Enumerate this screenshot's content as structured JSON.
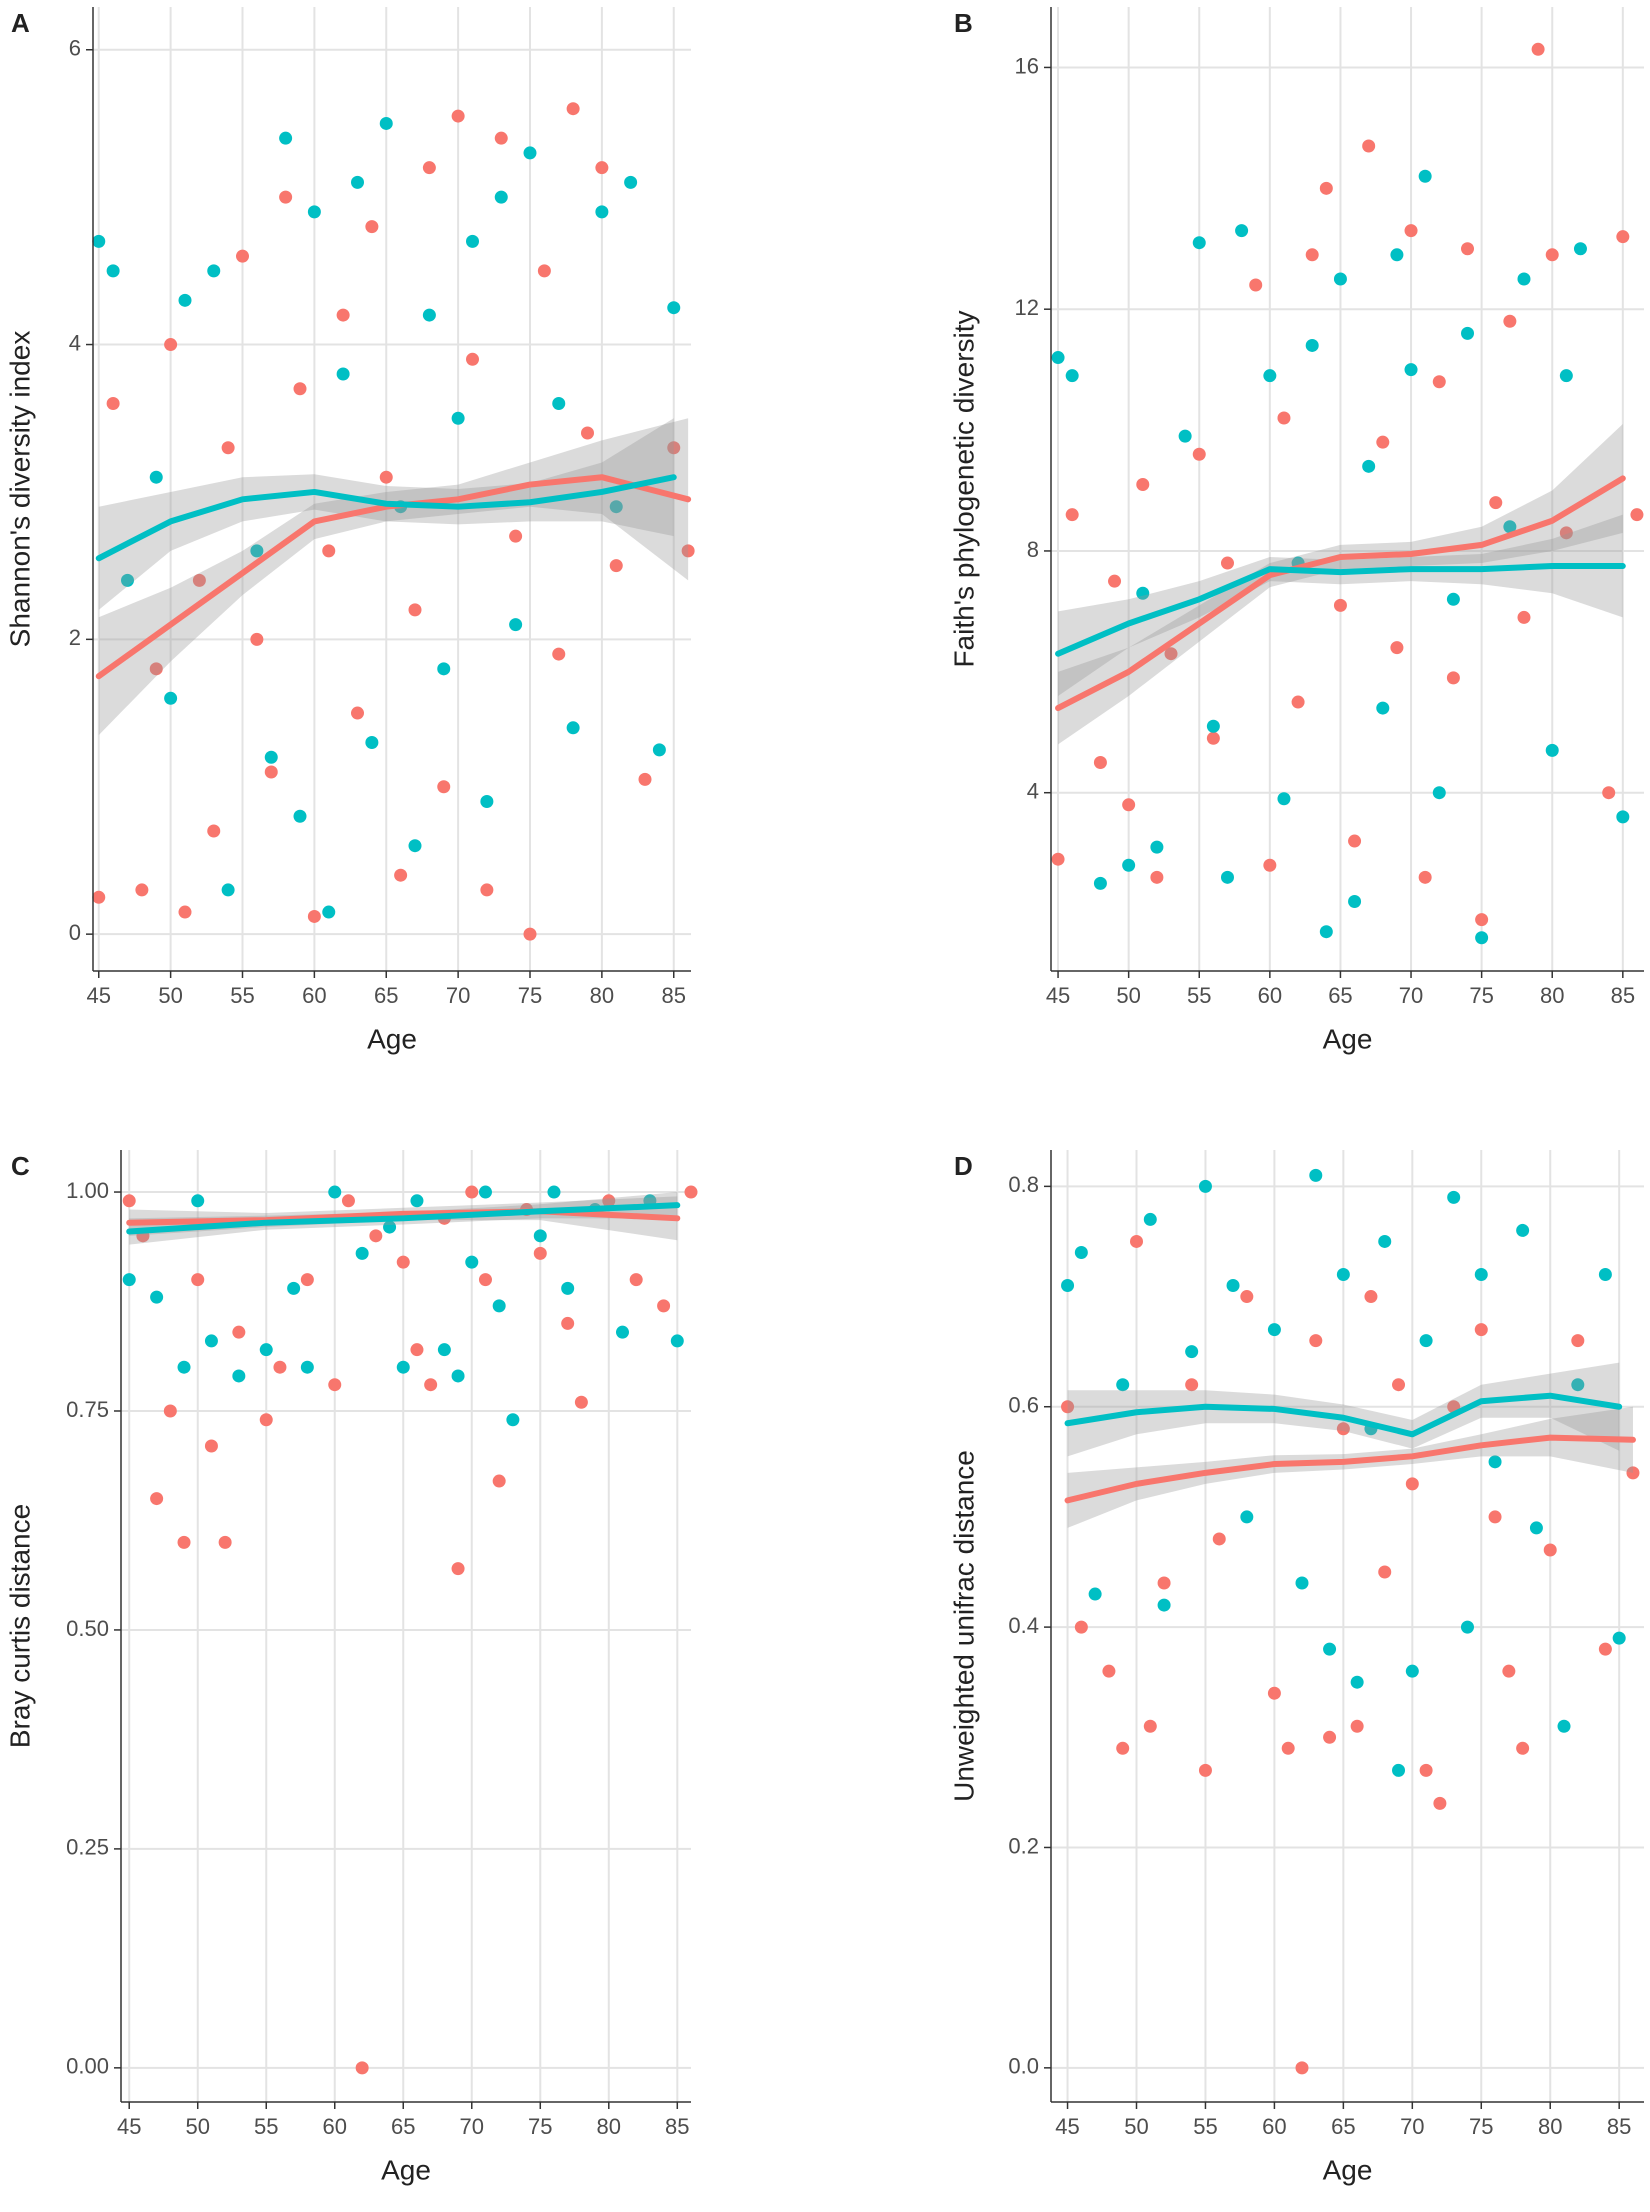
{
  "chart_data": [
    {
      "type": "scatter",
      "label": "A",
      "xlabel": "Age",
      "ylabel": "Shannon's diversity index",
      "xlim": [
        44.6,
        86.2
      ],
      "ylim": [
        -0.25,
        6.29
      ],
      "xticks": [
        45,
        50,
        55,
        60,
        65,
        70,
        75,
        80,
        85
      ],
      "yticks": [
        0,
        2,
        4,
        6
      ],
      "grid": true,
      "band_color": "#999999",
      "series": [
        {
          "color": "#F8766D",
          "x": [
            45,
            46,
            48,
            49,
            50,
            51,
            52,
            53,
            54,
            55,
            56,
            57,
            58,
            59,
            60,
            61,
            62,
            63,
            64,
            65,
            66,
            67,
            68,
            69,
            70,
            71,
            72,
            73,
            74,
            75,
            76,
            77,
            78,
            79,
            80,
            81,
            83,
            85,
            86
          ],
          "y": [
            0.25,
            3.6,
            0.3,
            1.8,
            4.0,
            0.15,
            2.4,
            0.7,
            3.3,
            4.6,
            2.0,
            1.1,
            5.0,
            3.7,
            0.12,
            2.6,
            4.2,
            1.5,
            4.8,
            3.1,
            0.4,
            2.2,
            5.2,
            1.0,
            5.55,
            3.9,
            0.3,
            5.4,
            2.7,
            0.0,
            4.5,
            1.9,
            5.6,
            3.4,
            5.2,
            2.5,
            1.05,
            3.3,
            2.6
          ]
        },
        {
          "color": "#00BFC4",
          "x": [
            45,
            46,
            47,
            49,
            50,
            51,
            53,
            54,
            56,
            57,
            58,
            59,
            60,
            61,
            62,
            63,
            64,
            65,
            66,
            67,
            68,
            69,
            70,
            71,
            72,
            73,
            74,
            75,
            77,
            78,
            80,
            81,
            82,
            84,
            85
          ],
          "y": [
            4.7,
            4.5,
            2.4,
            3.1,
            1.6,
            4.3,
            4.5,
            0.3,
            2.6,
            1.2,
            5.4,
            0.8,
            4.9,
            0.15,
            3.8,
            5.1,
            1.3,
            5.5,
            2.9,
            0.6,
            4.2,
            1.8,
            3.5,
            4.7,
            0.9,
            5.0,
            2.1,
            5.3,
            3.6,
            1.4,
            4.9,
            2.9,
            5.1,
            1.25,
            4.25
          ]
        }
      ],
      "smooth": [
        {
          "color": "#F8766D",
          "x": [
            45,
            50,
            55,
            60,
            65,
            70,
            75,
            80,
            86
          ],
          "y": [
            1.75,
            2.1,
            2.45,
            2.8,
            2.9,
            2.95,
            3.05,
            3.1,
            2.95
          ],
          "lower": [
            1.35,
            1.85,
            2.3,
            2.68,
            2.8,
            2.85,
            2.9,
            2.85,
            2.4
          ],
          "upper": [
            2.15,
            2.35,
            2.6,
            2.92,
            3.0,
            3.05,
            3.2,
            3.35,
            3.5
          ]
        },
        {
          "color": "#00BFC4",
          "x": [
            45,
            50,
            55,
            60,
            65,
            70,
            75,
            80,
            85
          ],
          "y": [
            2.55,
            2.8,
            2.95,
            3.0,
            2.92,
            2.9,
            2.93,
            3.0,
            3.1
          ],
          "lower": [
            2.2,
            2.6,
            2.8,
            2.88,
            2.8,
            2.78,
            2.8,
            2.8,
            2.7
          ],
          "upper": [
            2.9,
            3.0,
            3.1,
            3.12,
            3.04,
            3.02,
            3.06,
            3.2,
            3.5
          ]
        }
      ]
    },
    {
      "type": "scatter",
      "label": "B",
      "xlabel": "Age",
      "ylabel": "Faith's phylogenetic diversity",
      "xlim": [
        44.5,
        86.5
      ],
      "ylim": [
        1.05,
        17
      ],
      "xticks": [
        45,
        50,
        55,
        60,
        65,
        70,
        75,
        80,
        85
      ],
      "yticks": [
        4,
        8,
        12,
        16
      ],
      "grid": true,
      "band_color": "#999999",
      "series": [
        {
          "color": "#F8766D",
          "x": [
            45,
            46,
            48,
            49,
            50,
            51,
            52,
            53,
            55,
            56,
            57,
            59,
            60,
            61,
            62,
            63,
            64,
            65,
            66,
            67,
            68,
            69,
            70,
            71,
            72,
            73,
            74,
            75,
            76,
            77,
            78,
            79,
            80,
            81,
            84,
            85,
            86
          ],
          "y": [
            2.9,
            8.6,
            4.5,
            7.5,
            3.8,
            9.1,
            2.6,
            6.3,
            9.6,
            4.9,
            7.8,
            12.4,
            2.8,
            10.2,
            5.5,
            12.9,
            14.0,
            7.1,
            3.2,
            14.7,
            9.8,
            6.4,
            13.3,
            2.6,
            10.8,
            5.9,
            13.0,
            1.9,
            8.8,
            11.8,
            6.9,
            16.3,
            12.9,
            8.3,
            4.0,
            13.2,
            8.6
          ]
        },
        {
          "color": "#00BFC4",
          "x": [
            45,
            46,
            48,
            50,
            51,
            52,
            54,
            55,
            56,
            57,
            58,
            60,
            61,
            62,
            63,
            64,
            65,
            66,
            67,
            68,
            69,
            70,
            71,
            72,
            73,
            74,
            75,
            77,
            78,
            80,
            81,
            82,
            85
          ],
          "y": [
            11.2,
            10.9,
            2.5,
            2.8,
            7.3,
            3.1,
            9.9,
            13.1,
            5.1,
            2.6,
            13.3,
            10.9,
            3.9,
            7.8,
            11.4,
            1.7,
            12.5,
            2.2,
            9.4,
            5.4,
            12.9,
            11.0,
            14.2,
            4.0,
            7.2,
            11.6,
            1.6,
            8.4,
            12.5,
            4.7,
            10.9,
            13.0,
            3.6
          ]
        }
      ],
      "smooth": [
        {
          "color": "#F8766D",
          "x": [
            45,
            50,
            55,
            60,
            65,
            70,
            75,
            80,
            85
          ],
          "y": [
            5.4,
            6.0,
            6.8,
            7.6,
            7.9,
            7.95,
            8.1,
            8.5,
            9.2
          ],
          "lower": [
            4.8,
            5.6,
            6.5,
            7.4,
            7.7,
            7.75,
            7.8,
            8.0,
            8.3
          ],
          "upper": [
            6.0,
            6.4,
            7.1,
            7.8,
            8.1,
            8.15,
            8.4,
            9.0,
            10.1
          ]
        },
        {
          "color": "#00BFC4",
          "x": [
            45,
            50,
            55,
            60,
            65,
            70,
            75,
            80,
            85
          ],
          "y": [
            6.3,
            6.8,
            7.2,
            7.7,
            7.65,
            7.7,
            7.7,
            7.75,
            7.75
          ],
          "lower": [
            5.6,
            6.4,
            6.9,
            7.5,
            7.45,
            7.5,
            7.45,
            7.3,
            6.9
          ],
          "upper": [
            7.0,
            7.2,
            7.5,
            7.9,
            7.85,
            7.9,
            7.95,
            8.2,
            8.6
          ]
        }
      ]
    },
    {
      "type": "scatter",
      "label": "C",
      "xlabel": "Age",
      "ylabel": "Bray curtis distance",
      "xlim": [
        44.4,
        86.0
      ],
      "ylim": [
        -0.039,
        1.048
      ],
      "xticks": [
        45,
        50,
        55,
        60,
        65,
        70,
        75,
        80,
        85
      ],
      "yticks": [
        {
          "value": 0,
          "label": "0.00"
        },
        {
          "value": 0.25,
          "label": "0.25"
        },
        {
          "value": 0.5,
          "label": "0.50"
        },
        {
          "value": 0.75,
          "label": "0.75"
        },
        {
          "value": 1,
          "label": "1.00"
        }
      ],
      "grid": true,
      "band_color": "#999999",
      "series": [
        {
          "color": "#F8766D",
          "x": [
            45,
            46,
            47,
            48,
            49,
            50,
            51,
            52,
            53,
            55,
            56,
            58,
            60,
            61,
            62,
            63,
            65,
            66,
            67,
            68,
            69,
            70,
            71,
            72,
            74,
            75,
            77,
            78,
            80,
            82,
            84,
            86
          ],
          "y": [
            0.99,
            0.95,
            0.65,
            0.75,
            0.6,
            0.9,
            0.71,
            0.6,
            0.84,
            0.74,
            0.8,
            0.9,
            0.78,
            0.99,
            0.0,
            0.95,
            0.92,
            0.82,
            0.78,
            0.97,
            0.57,
            1.0,
            0.9,
            0.67,
            0.98,
            0.93,
            0.85,
            0.76,
            0.99,
            0.9,
            0.87,
            1.0
          ]
        },
        {
          "color": "#00BFC4",
          "x": [
            45,
            47,
            49,
            50,
            51,
            53,
            55,
            57,
            58,
            60,
            62,
            64,
            65,
            66,
            68,
            69,
            70,
            71,
            72,
            73,
            75,
            76,
            77,
            79,
            81,
            83,
            85
          ],
          "y": [
            0.9,
            0.88,
            0.8,
            0.99,
            0.83,
            0.79,
            0.82,
            0.89,
            0.8,
            1.0,
            0.93,
            0.96,
            0.8,
            0.99,
            0.82,
            0.79,
            0.92,
            1.0,
            0.87,
            0.74,
            0.95,
            1.0,
            0.89,
            0.98,
            0.84,
            0.99,
            0.83
          ]
        }
      ],
      "smooth": [
        {
          "color": "#F8766D",
          "x": [
            45,
            55,
            65,
            75,
            85
          ],
          "y": [
            0.965,
            0.968,
            0.975,
            0.978,
            0.97
          ],
          "lower": [
            0.95,
            0.96,
            0.968,
            0.968,
            0.945
          ],
          "upper": [
            0.98,
            0.976,
            0.982,
            0.988,
            0.995
          ]
        },
        {
          "color": "#00BFC4",
          "x": [
            45,
            55,
            65,
            75,
            85
          ],
          "y": [
            0.955,
            0.965,
            0.97,
            0.978,
            0.985
          ],
          "lower": [
            0.94,
            0.957,
            0.963,
            0.97,
            0.97
          ],
          "upper": [
            0.97,
            0.973,
            0.977,
            0.986,
            1.0
          ]
        }
      ]
    },
    {
      "type": "scatter",
      "label": "D",
      "xlabel": "Age",
      "ylabel": "Unweighted unifrac distance",
      "xlim": [
        43.8,
        86.8
      ],
      "ylim": [
        -0.031,
        0.833
      ],
      "xticks": [
        45,
        50,
        55,
        60,
        65,
        70,
        75,
        80,
        85
      ],
      "yticks": [
        {
          "value": 0,
          "label": "0.0"
        },
        0.2,
        0.4,
        0.6,
        0.8
      ],
      "grid": true,
      "band_color": "#999999",
      "series": [
        {
          "color": "#F8766D",
          "x": [
            45,
            46,
            48,
            49,
            50,
            51,
            52,
            54,
            55,
            56,
            58,
            60,
            61,
            62,
            63,
            64,
            65,
            66,
            67,
            68,
            69,
            70,
            71,
            72,
            73,
            75,
            76,
            77,
            78,
            80,
            82,
            84,
            86
          ],
          "y": [
            0.6,
            0.4,
            0.36,
            0.29,
            0.75,
            0.31,
            0.44,
            0.62,
            0.27,
            0.48,
            0.7,
            0.34,
            0.29,
            0.0,
            0.66,
            0.3,
            0.58,
            0.31,
            0.7,
            0.45,
            0.62,
            0.53,
            0.27,
            0.24,
            0.6,
            0.67,
            0.5,
            0.36,
            0.29,
            0.47,
            0.66,
            0.38,
            0.54
          ]
        },
        {
          "color": "#00BFC4",
          "x": [
            45,
            46,
            47,
            49,
            51,
            52,
            54,
            55,
            57,
            58,
            60,
            62,
            63,
            64,
            65,
            66,
            67,
            68,
            69,
            70,
            71,
            73,
            74,
            75,
            76,
            78,
            79,
            81,
            82,
            84,
            85
          ],
          "y": [
            0.71,
            0.74,
            0.43,
            0.62,
            0.77,
            0.42,
            0.65,
            0.8,
            0.71,
            0.5,
            0.67,
            0.44,
            0.81,
            0.38,
            0.72,
            0.35,
            0.58,
            0.75,
            0.27,
            0.36,
            0.66,
            0.79,
            0.4,
            0.72,
            0.55,
            0.76,
            0.49,
            0.31,
            0.62,
            0.72,
            0.39
          ]
        }
      ],
      "smooth": [
        {
          "color": "#F8766D",
          "x": [
            45,
            50,
            55,
            60,
            65,
            70,
            75,
            80,
            86
          ],
          "y": [
            0.515,
            0.53,
            0.54,
            0.548,
            0.55,
            0.555,
            0.565,
            0.572,
            0.57
          ],
          "lower": [
            0.49,
            0.515,
            0.53,
            0.54,
            0.543,
            0.548,
            0.555,
            0.555,
            0.54
          ],
          "upper": [
            0.54,
            0.545,
            0.55,
            0.556,
            0.557,
            0.562,
            0.575,
            0.589,
            0.6
          ]
        },
        {
          "color": "#00BFC4",
          "x": [
            45,
            50,
            55,
            60,
            65,
            70,
            75,
            80,
            85
          ],
          "y": [
            0.585,
            0.595,
            0.6,
            0.598,
            0.59,
            0.575,
            0.605,
            0.61,
            0.6
          ],
          "lower": [
            0.555,
            0.575,
            0.585,
            0.585,
            0.578,
            0.562,
            0.59,
            0.59,
            0.56
          ],
          "upper": [
            0.615,
            0.615,
            0.615,
            0.611,
            0.602,
            0.588,
            0.62,
            0.63,
            0.64
          ]
        }
      ]
    }
  ]
}
